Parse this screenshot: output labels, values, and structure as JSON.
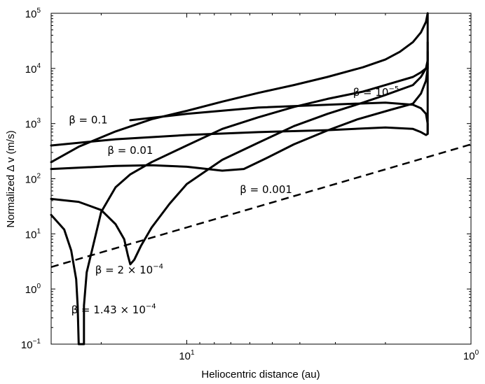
{
  "chart_data": {
    "type": "line",
    "title": "",
    "xlabel": "Heliocentric distance (au)",
    "ylabel": "Normalized Δ v (m/s)",
    "xscale": "log",
    "yscale": "log",
    "xdirection": "reversed",
    "xlim": [
      30,
      1
    ],
    "ylim": [
      0.1,
      100000
    ],
    "grid": false,
    "legend": "none",
    "x_ticks": [
      {
        "base": "10",
        "exp": "1"
      },
      {
        "base": "10",
        "exp": "0"
      }
    ],
    "y_ticks": [
      {
        "base": "10",
        "exp": "5"
      },
      {
        "base": "10",
        "exp": "4"
      },
      {
        "base": "10",
        "exp": "3"
      },
      {
        "base": "10",
        "exp": "2"
      },
      {
        "base": "10",
        "exp": "1"
      },
      {
        "base": "10",
        "exp": "0"
      },
      {
        "base": "10",
        "exp": "−1"
      }
    ],
    "annotations": [
      {
        "text": "β = 10",
        "sup": "−5"
      },
      {
        "text": "β = 0.1",
        "sup": ""
      },
      {
        "text": "β = 0.01",
        "sup": ""
      },
      {
        "text": "β = 0.001",
        "sup": ""
      },
      {
        "text": "β = 2 × 10",
        "sup": "−4"
      },
      {
        "text": "β = 1.43 × 10",
        "sup": "−4"
      }
    ],
    "series": [
      {
        "label_ref": 0,
        "style": "solid",
        "x": [
          30,
          24,
          17.8,
          13.3,
          10,
          7.5,
          5.6,
          4.2,
          3.2,
          2.4,
          2.0,
          1.78,
          1.6,
          1.5,
          1.44,
          1.42
        ],
        "y": [
          200,
          380,
          720,
          1200,
          1700,
          2500,
          3600,
          5000,
          7000,
          10500,
          14500,
          20000,
          30000,
          45000,
          70000,
          100000
        ]
      },
      {
        "label_ref": 1,
        "style": "solid",
        "x": [
          15.8,
          10,
          5.6,
          3.2,
          2.0,
          1.6,
          1.5,
          1.44,
          1.42,
          1.42,
          1.42
        ],
        "y": [
          1150,
          1500,
          1950,
          2200,
          2400,
          2200,
          1900,
          1500,
          1000,
          800,
          650
        ]
      },
      {
        "label_ref": 2,
        "style": "solid",
        "x": [
          30,
          17.8,
          10,
          5.6,
          3.2,
          2.0,
          1.6,
          1.5,
          1.44,
          1.42,
          1.42,
          1.42
        ],
        "y": [
          400,
          520,
          620,
          700,
          760,
          850,
          800,
          700,
          620,
          650,
          2000,
          100000
        ]
      },
      {
        "label_ref": 3,
        "style": "solid",
        "x": [
          30,
          17.8,
          13.3,
          10,
          7.5,
          6.3,
          5.3,
          4.2,
          3.2,
          2.5,
          1.9,
          1.6,
          1.5,
          1.44,
          1.42,
          1.42
        ],
        "y": [
          150,
          170,
          175,
          165,
          140,
          150,
          230,
          420,
          750,
          1200,
          1800,
          2300,
          3500,
          6000,
          10000,
          30000
        ]
      },
      {
        "label_ref": 4,
        "style": "solid",
        "x": [
          30,
          24,
          20,
          17.8,
          16.6,
          16.1,
          15.8,
          15.3,
          14.5,
          13.3,
          11.5,
          10,
          7.5,
          5.6,
          4.2,
          3.2,
          2.4,
          2.0,
          1.6,
          1.5,
          1.44,
          1.42,
          1.42
        ],
        "y": [
          43,
          38,
          27,
          15,
          8,
          4,
          2.8,
          3.4,
          6,
          13,
          35,
          80,
          220,
          450,
          900,
          1500,
          2400,
          3300,
          5000,
          7000,
          10000,
          14000,
          20000
        ]
      },
      {
        "label_ref": 5,
        "style": "solid",
        "x": [
          30,
          27,
          25.5,
          24.5,
          24.2,
          24.0,
          24.0,
          24.0,
          23.0,
          23.0,
          23.0,
          22.5,
          20,
          17.8,
          15.8,
          13.3,
          10,
          7.5,
          5.6,
          4.2,
          3.2,
          2.4,
          2.0,
          1.6,
          1.5,
          1.44,
          1.42
        ],
        "y": [
          22,
          12,
          5,
          1.5,
          0.5,
          0.1,
          0.1,
          0.1,
          0.1,
          0.1,
          0.5,
          2,
          25,
          70,
          120,
          200,
          400,
          800,
          1300,
          2000,
          2800,
          3800,
          5000,
          7000,
          8500,
          10000,
          12000
        ]
      },
      {
        "label_ref": null,
        "style": "dashed",
        "x": [
          30,
          1
        ],
        "y": [
          2.5,
          420
        ]
      }
    ]
  }
}
